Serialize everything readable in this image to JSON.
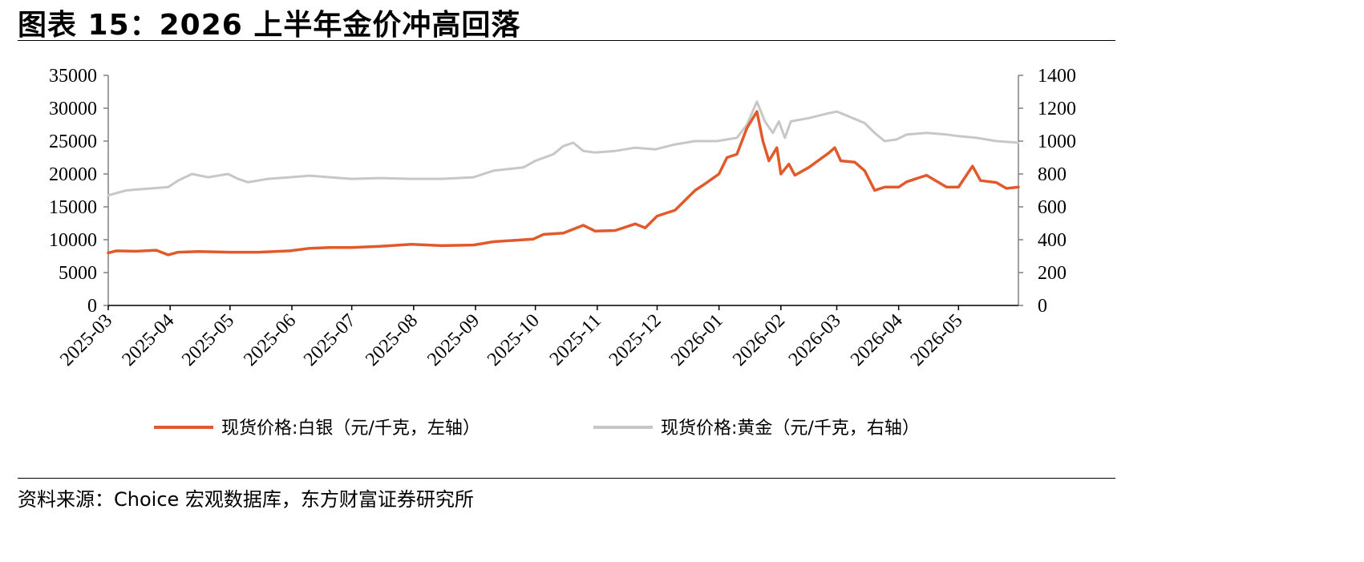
{
  "title": "图表 15：2026 上半年金价冲高回落",
  "source": "资料来源：Choice 宏观数据库，东方财富证券研究所",
  "colors": {
    "silver": "#e05a2b",
    "gold": "#c7c7c7",
    "axis": "#808080"
  },
  "chart_data": {
    "type": "line",
    "title": "",
    "x_categories": [
      "2025-03",
      "2025-04",
      "2025-05",
      "2025-06",
      "2025-07",
      "2025-08",
      "2025-09",
      "2025-10",
      "2025-11",
      "2025-12",
      "2026-01",
      "2026-02",
      "2026-03",
      "2026-04",
      "2026-05"
    ],
    "y_left": {
      "min": 0,
      "max": 35000,
      "ticks": [
        "0",
        "5000",
        "10000",
        "15000",
        "20000",
        "25000",
        "30000",
        "35000"
      ]
    },
    "y_right": {
      "min": 0,
      "max": 1400,
      "ticks": [
        "0",
        "200",
        "400",
        "600",
        "800",
        "1000",
        "1200",
        "1400"
      ]
    },
    "legend_position": "bottom",
    "series": [
      {
        "name": "现货价格:白银（元/千克，左轴）",
        "axis": "left",
        "color": "#e05a2b",
        "points": [
          [
            "2025-03-01",
            8000
          ],
          [
            "2025-03-05",
            8300
          ],
          [
            "2025-03-15",
            8250
          ],
          [
            "2025-03-25",
            8400
          ],
          [
            "2025-03-31",
            7700
          ],
          [
            "2025-04-05",
            8100
          ],
          [
            "2025-04-15",
            8200
          ],
          [
            "2025-04-25",
            8150
          ],
          [
            "2025-05-01",
            8100
          ],
          [
            "2025-05-15",
            8100
          ],
          [
            "2025-05-31",
            8300
          ],
          [
            "2025-06-10",
            8700
          ],
          [
            "2025-06-20",
            8800
          ],
          [
            "2025-07-01",
            8800
          ],
          [
            "2025-07-15",
            9000
          ],
          [
            "2025-07-31",
            9300
          ],
          [
            "2025-08-15",
            9100
          ],
          [
            "2025-08-31",
            9200
          ],
          [
            "2025-09-10",
            9700
          ],
          [
            "2025-09-30",
            10100
          ],
          [
            "2025-10-05",
            10800
          ],
          [
            "2025-10-15",
            11000
          ],
          [
            "2025-10-25",
            12200
          ],
          [
            "2025-10-31",
            11300
          ],
          [
            "2025-11-10",
            11400
          ],
          [
            "2025-11-20",
            12400
          ],
          [
            "2025-11-25",
            11800
          ],
          [
            "2025-12-01",
            13600
          ],
          [
            "2025-12-10",
            14500
          ],
          [
            "2025-12-20",
            17500
          ],
          [
            "2025-12-25",
            18500
          ],
          [
            "2026-01-01",
            20000
          ],
          [
            "2026-01-05",
            22500
          ],
          [
            "2026-01-10",
            23000
          ],
          [
            "2026-01-15",
            27000
          ],
          [
            "2026-01-20",
            29500
          ],
          [
            "2026-01-23",
            25000
          ],
          [
            "2026-01-26",
            22000
          ],
          [
            "2026-01-30",
            24000
          ],
          [
            "2026-02-01",
            20000
          ],
          [
            "2026-02-05",
            21500
          ],
          [
            "2026-02-08",
            19800
          ],
          [
            "2026-02-15",
            21000
          ],
          [
            "2026-02-25",
            23200
          ],
          [
            "2026-02-28",
            24000
          ],
          [
            "2026-03-03",
            22000
          ],
          [
            "2026-03-10",
            21800
          ],
          [
            "2026-03-15",
            20500
          ],
          [
            "2026-03-20",
            17500
          ],
          [
            "2026-03-25",
            18000
          ],
          [
            "2026-04-01",
            18000
          ],
          [
            "2026-04-05",
            18800
          ],
          [
            "2026-04-15",
            19800
          ],
          [
            "2026-04-25",
            18000
          ],
          [
            "2026-05-01",
            18000
          ],
          [
            "2026-05-08",
            21200
          ],
          [
            "2026-05-12",
            19000
          ],
          [
            "2026-05-20",
            18700
          ],
          [
            "2026-05-25",
            17800
          ],
          [
            "2026-05-31",
            18000
          ]
        ]
      },
      {
        "name": "现货价格:黄金（元/千克，右轴）",
        "axis": "right",
        "color": "#c7c7c7",
        "points": [
          [
            "2025-03-01",
            670
          ],
          [
            "2025-03-10",
            700
          ],
          [
            "2025-03-20",
            710
          ],
          [
            "2025-03-31",
            720
          ],
          [
            "2025-04-05",
            760
          ],
          [
            "2025-04-12",
            800
          ],
          [
            "2025-04-20",
            780
          ],
          [
            "2025-04-30",
            800
          ],
          [
            "2025-05-05",
            770
          ],
          [
            "2025-05-10",
            750
          ],
          [
            "2025-05-20",
            770
          ],
          [
            "2025-05-31",
            780
          ],
          [
            "2025-06-10",
            790
          ],
          [
            "2025-06-20",
            780
          ],
          [
            "2025-07-01",
            770
          ],
          [
            "2025-07-15",
            775
          ],
          [
            "2025-07-31",
            770
          ],
          [
            "2025-08-15",
            770
          ],
          [
            "2025-08-31",
            780
          ],
          [
            "2025-09-10",
            820
          ],
          [
            "2025-09-25",
            840
          ],
          [
            "2025-10-01",
            880
          ],
          [
            "2025-10-10",
            920
          ],
          [
            "2025-10-15",
            970
          ],
          [
            "2025-10-20",
            990
          ],
          [
            "2025-10-25",
            940
          ],
          [
            "2025-10-31",
            930
          ],
          [
            "2025-11-10",
            940
          ],
          [
            "2025-11-20",
            960
          ],
          [
            "2025-11-30",
            950
          ],
          [
            "2025-12-10",
            980
          ],
          [
            "2025-12-20",
            1000
          ],
          [
            "2025-12-31",
            1000
          ],
          [
            "2026-01-10",
            1020
          ],
          [
            "2026-01-15",
            1100
          ],
          [
            "2026-01-20",
            1240
          ],
          [
            "2026-01-24",
            1120
          ],
          [
            "2026-01-28",
            1050
          ],
          [
            "2026-01-31",
            1120
          ],
          [
            "2026-02-03",
            1020
          ],
          [
            "2026-02-06",
            1120
          ],
          [
            "2026-02-15",
            1140
          ],
          [
            "2026-02-25",
            1170
          ],
          [
            "2026-03-01",
            1180
          ],
          [
            "2026-03-05",
            1160
          ],
          [
            "2026-03-15",
            1110
          ],
          [
            "2026-03-20",
            1050
          ],
          [
            "2026-03-25",
            1000
          ],
          [
            "2026-03-31",
            1010
          ],
          [
            "2026-04-05",
            1040
          ],
          [
            "2026-04-15",
            1050
          ],
          [
            "2026-04-25",
            1040
          ],
          [
            "2026-05-01",
            1030
          ],
          [
            "2026-05-10",
            1020
          ],
          [
            "2026-05-20",
            1000
          ],
          [
            "2026-05-31",
            990
          ]
        ]
      }
    ]
  }
}
